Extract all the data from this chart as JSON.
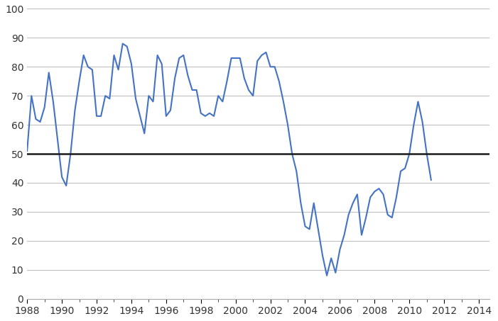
{
  "line_color": "#4472C4",
  "reference_line_color": "#1a1a1a",
  "reference_line_value": 50,
  "background_color": "#ffffff",
  "grid_color": "#c0c0c0",
  "ylim": [
    0,
    100
  ],
  "yticks": [
    0,
    10,
    20,
    30,
    40,
    50,
    60,
    70,
    80,
    90,
    100
  ],
  "xlim_start": 1988.0,
  "xlim_end": 2014.6,
  "xticks": [
    1988,
    1990,
    1992,
    1994,
    1996,
    1998,
    2000,
    2002,
    2004,
    2006,
    2008,
    2010,
    2012,
    2014
  ],
  "values": [
    51,
    70,
    62,
    61,
    66,
    78,
    68,
    55,
    42,
    39,
    50,
    65,
    75,
    84,
    80,
    79,
    63,
    63,
    70,
    69,
    84,
    79,
    88,
    87,
    81,
    69,
    63,
    57,
    70,
    68,
    84,
    81,
    63,
    65,
    76,
    83,
    84,
    77,
    72,
    72,
    64,
    63,
    64,
    63,
    70,
    68,
    75,
    83,
    83,
    83,
    76,
    72,
    70,
    82,
    84,
    85,
    80,
    80,
    75,
    68,
    60,
    50,
    44,
    33,
    25,
    24,
    33,
    24,
    15,
    8,
    14,
    9,
    17,
    22,
    29,
    33,
    36,
    22,
    28,
    35,
    37,
    38,
    36,
    29,
    28,
    35,
    44,
    45,
    50,
    60,
    68,
    61,
    50,
    41
  ],
  "start_year": 1988.0,
  "freq": 0.25
}
